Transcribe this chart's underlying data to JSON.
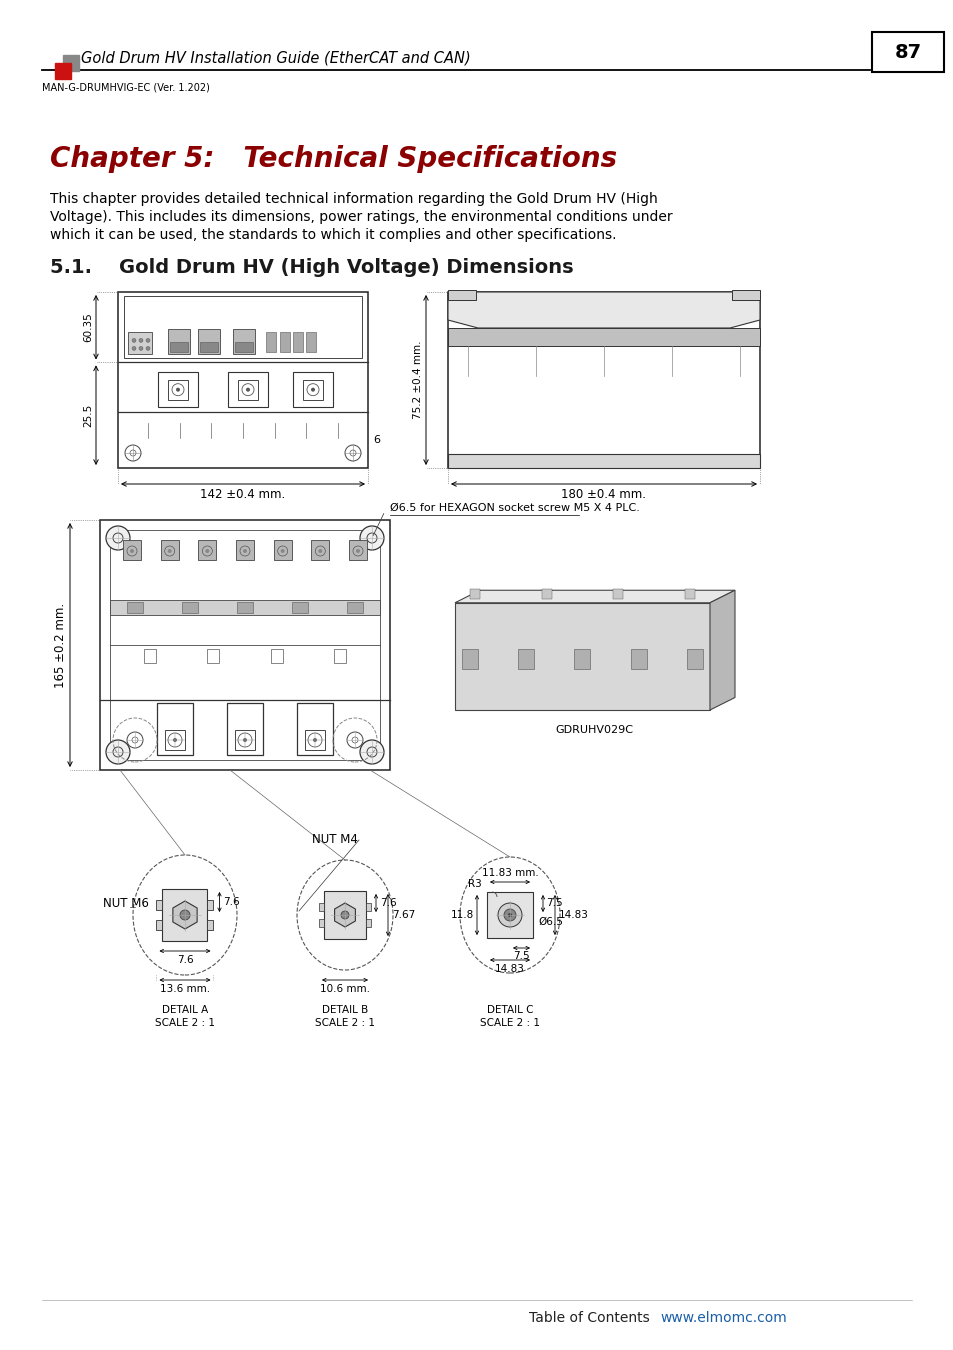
{
  "page_bg": "#ffffff",
  "header_text": "Gold Drum HV Installation Guide (EtherCAT and CAN)",
  "header_subtext": "MAN-G-DRUMHVIG-EC (Ver. 1.202)",
  "page_number": "87",
  "chapter_title": "Chapter 5:   Technical Specifications",
  "chapter_title_color": "#8B0000",
  "body_text_line1": "This chapter provides detailed technical information regarding the Gold Drum HV (High",
  "body_text_line2": "Voltage). This includes its dimensions, power ratings, the environmental conditions under",
  "body_text_line3": "which it can be used, the standards to which it complies and other specifications.",
  "section_title": "5.1.    Gold Drum HV (High Voltage) Dimensions",
  "footer_text": "Table of Contents",
  "footer_link": "www.elmomc.com",
  "footer_link_color": "#1a5fa8",
  "dim_142": "142 ±0.4 mm.",
  "dim_180": "180 ±0.4 mm.",
  "dim_6035": "60.35",
  "dim_255": "25.5",
  "dim_752": "75.2 ±0.4 mm.",
  "dim_6": "6",
  "dim_165": "165 ±0.2 mm.",
  "dim_1183": "11.83 mm.",
  "dim_118": "11.8",
  "dim_1483": "14.83",
  "dim_65": "Ø6.5",
  "dim_r3": "R3",
  "hexagon_note": "Ø6.5 for HEXAGON socket screw M5 X 4 PLC.",
  "nut_m6": "NUT M6",
  "nut_m4": "NUT M4",
  "detail_a_l1": "DETAIL A",
  "detail_a_l2": "SCALE 2 : 1",
  "detail_b_l1": "DETAIL B",
  "detail_b_l2": "SCALE 2 : 1",
  "detail_c_l1": "DETAIL C",
  "detail_c_l2": "SCALE 2 : 1",
  "dim_76": "7.6",
  "dim_767": "7.67",
  "dim_106": "10.6 mm.",
  "dim_136": "13.6 mm.",
  "dim_75a": "7.5",
  "dim_75b": "7.5",
  "dim_1483b": "14.83",
  "gdruhv": "GDRUHV029C"
}
